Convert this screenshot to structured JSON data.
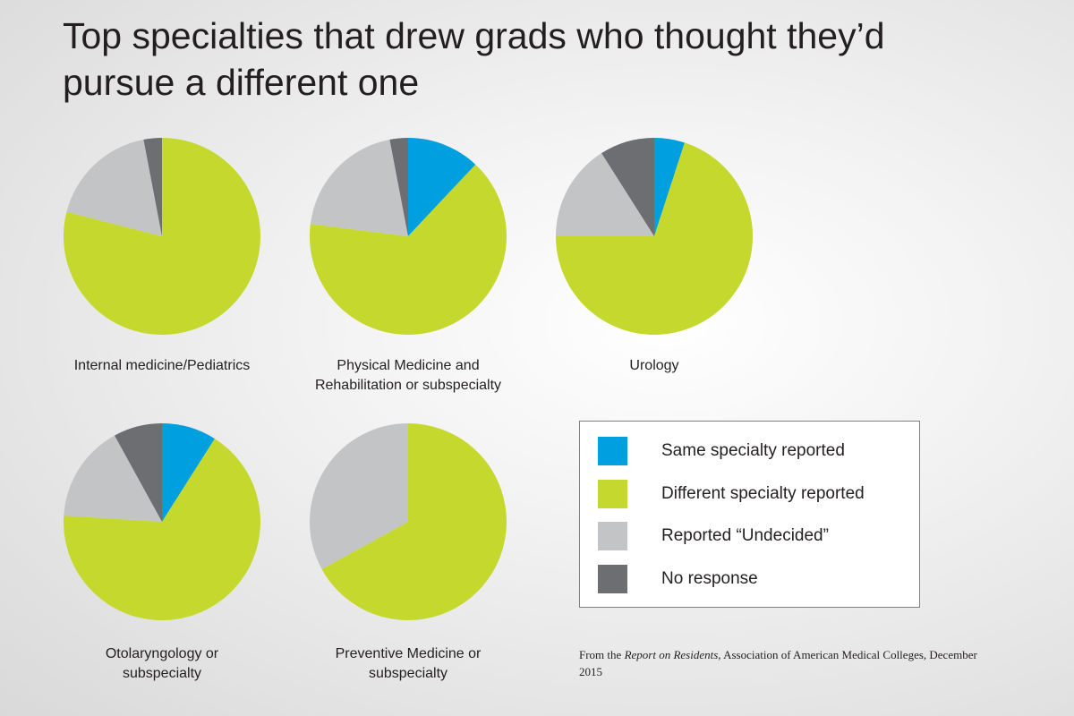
{
  "title": "Top specialties that drew grads who thought they’d pursue a different one",
  "source": [
    "From the ",
    "Report on Residents",
    ", Association of American Medical Colleges, December 2015"
  ],
  "chart_data": [
    {
      "type": "pie",
      "title": "Internal medicine/Pediatrics",
      "categories": [
        "Same specialty reported",
        "Different specialty reported",
        "Reported “Undecided”",
        "No response"
      ],
      "colors": [
        "#009fdf",
        "#c4d82e",
        "#c3c4c6",
        "#6d6e71"
      ],
      "values": [
        0,
        79,
        18,
        3
      ]
    },
    {
      "type": "pie",
      "title": "Physical Medicine and Rehabilitation or subspecialty",
      "categories": [
        "Same specialty reported",
        "Different specialty reported",
        "Reported “Undecided”",
        "No response"
      ],
      "colors": [
        "#009fdf",
        "#c4d82e",
        "#c3c4c6",
        "#6d6e71"
      ],
      "values": [
        12,
        65,
        20,
        3
      ]
    },
    {
      "type": "pie",
      "title": "Urology",
      "categories": [
        "Same specialty reported",
        "Different specialty reported",
        "Reported “Undecided”",
        "No response"
      ],
      "colors": [
        "#009fdf",
        "#c4d82e",
        "#c3c4c6",
        "#6d6e71"
      ],
      "values": [
        5,
        70,
        16,
        9
      ]
    },
    {
      "type": "pie",
      "title": "Otolaryngology or subspecialty",
      "categories": [
        "Same specialty reported",
        "Different specialty reported",
        "Reported “Undecided”",
        "No response"
      ],
      "colors": [
        "#009fdf",
        "#c4d82e",
        "#c3c4c6",
        "#6d6e71"
      ],
      "values": [
        9,
        67,
        16,
        8
      ]
    },
    {
      "type": "pie",
      "title": "Preventive Medicine or subspecialty",
      "categories": [
        "Same specialty reported",
        "Different specialty reported",
        "Reported “Undecided”",
        "No response"
      ],
      "colors": [
        "#009fdf",
        "#c4d82e",
        "#c3c4c6",
        "#6d6e71"
      ],
      "values": [
        0,
        67,
        33,
        0
      ]
    }
  ]
}
